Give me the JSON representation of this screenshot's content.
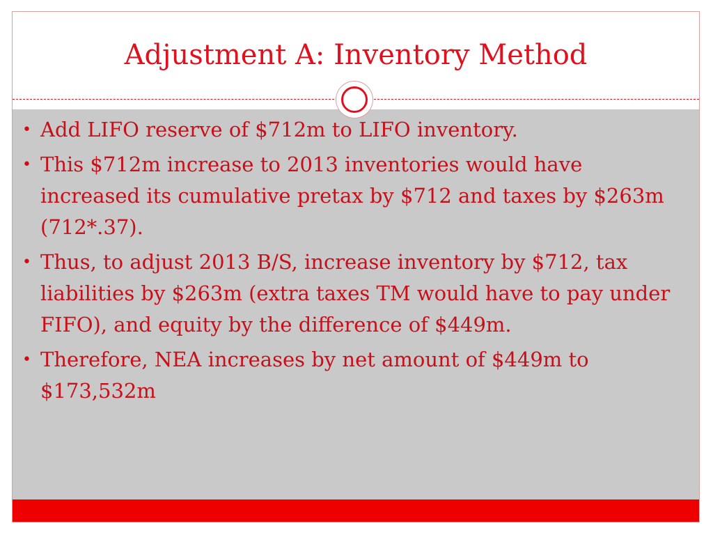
{
  "slide": {
    "title": "Adjustment A: Inventory Method",
    "bullets": [
      "Add LIFO reserve of $712m to LIFO inventory.",
      "This $712m increase to 2013 inventories would have increased its cumulative pretax by $712 and taxes by $263m (712*.37).",
      "Thus, to adjust 2013 B/S, increase inventory by $712, tax liabilities by $263m (extra taxes TM would have to pay under FIFO), and equity by the difference of $449m.",
      "Therefore,  NEA increases by net amount of $449m to $173,532m"
    ],
    "bullet_glyph": "•"
  },
  "colors": {
    "accent": "#e0101e",
    "text": "#c8101a",
    "panel": "#c9c9c9",
    "bar": "#ee0000"
  },
  "icons": {
    "divider_ornament": "circle-ring-icon"
  }
}
